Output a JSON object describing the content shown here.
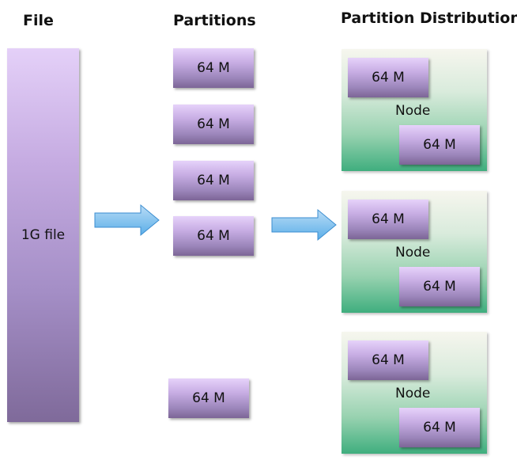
{
  "headings": {
    "file": "File",
    "partitions": "Partitions",
    "distribution": "Partition Distribution"
  },
  "file_block": {
    "label": "1G file"
  },
  "partitions": [
    "64 M",
    "64 M",
    "64 M",
    "64 M",
    "64 M"
  ],
  "nodes": [
    {
      "label": "Node",
      "blocks": [
        "64 M",
        "64 M"
      ]
    },
    {
      "label": "Node",
      "blocks": [
        "64 M",
        "64 M"
      ]
    },
    {
      "label": "Node",
      "blocks": [
        "64 M",
        "64 M"
      ]
    }
  ]
}
